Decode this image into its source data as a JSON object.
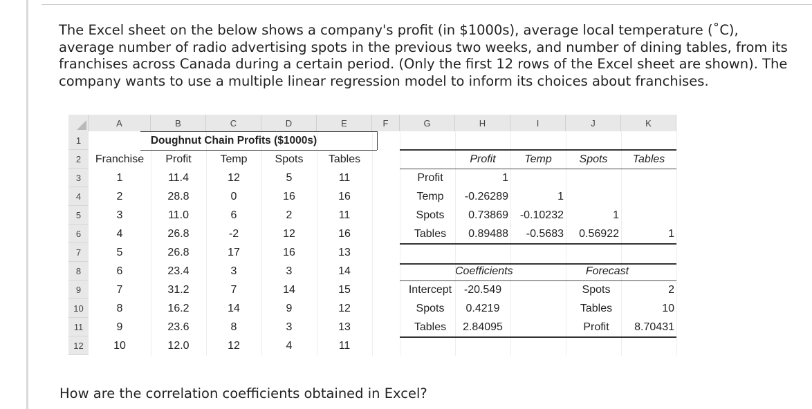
{
  "question": {
    "intro": "The Excel sheet on the below shows a company's profit (in $1000s), average local temperature (˚C), average number of radio advertising spots in the previous two weeks, and number of dining tables, from its franchises across Canada during a certain period. (Only the first 12 rows of the Excel sheet are shown). The company wants to use a multiple linear regression model to inform its choices about franchises.",
    "prompt": "How are the correlation coefficients obtained in Excel?"
  },
  "sheet": {
    "columns": [
      "A",
      "B",
      "C",
      "D",
      "E",
      "F",
      "G",
      "H",
      "I",
      "J",
      "K"
    ],
    "rows": [
      "1",
      "2",
      "3",
      "4",
      "5",
      "6",
      "7",
      "8",
      "9",
      "10",
      "11",
      "12"
    ],
    "title": "Doughnut Chain Profits ($1000s)",
    "data_headers": [
      "Franchise",
      "Profit",
      "Temp",
      "Spots",
      "Tables"
    ],
    "data_rows": [
      [
        "1",
        "11.4",
        "12",
        "5",
        "11"
      ],
      [
        "2",
        "28.8",
        "0",
        "16",
        "16"
      ],
      [
        "3",
        "11.0",
        "6",
        "2",
        "11"
      ],
      [
        "4",
        "26.8",
        "-2",
        "12",
        "16"
      ],
      [
        "5",
        "26.8",
        "17",
        "16",
        "13"
      ],
      [
        "6",
        "23.4",
        "3",
        "3",
        "14"
      ],
      [
        "7",
        "31.2",
        "7",
        "14",
        "15"
      ],
      [
        "8",
        "16.2",
        "14",
        "9",
        "12"
      ],
      [
        "9",
        "23.6",
        "8",
        "3",
        "13"
      ],
      [
        "10",
        "12.0",
        "12",
        "4",
        "11"
      ]
    ],
    "corr": {
      "headers": [
        "Profit",
        "Temp",
        "Spots",
        "Tables"
      ],
      "row_labels": [
        "Profit",
        "Temp",
        "Spots",
        "Tables"
      ],
      "rows": [
        [
          "1",
          "",
          "",
          ""
        ],
        [
          "-0.26289",
          "1",
          "",
          ""
        ],
        [
          "0.73869",
          "-0.10232",
          "1",
          ""
        ],
        [
          "0.89488",
          "-0.5683",
          "0.56922",
          "1"
        ]
      ]
    },
    "coef": {
      "header": "Coefficients",
      "labels": [
        "Intercept",
        "Spots",
        "Tables"
      ],
      "values": [
        "-20.549",
        "0.4219",
        "2.84095"
      ]
    },
    "forecast": {
      "header": "Forecast",
      "labels": [
        "Spots",
        "Tables",
        "Profit"
      ],
      "values": [
        "2",
        "10",
        "8.70431"
      ]
    }
  }
}
